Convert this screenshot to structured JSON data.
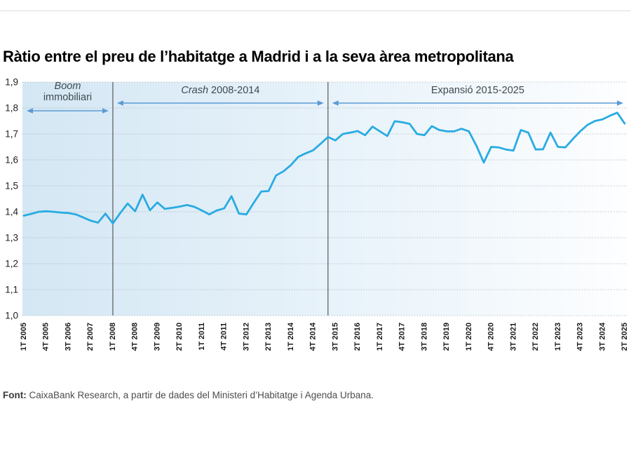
{
  "title": "Ràtio entre el preu de l’habitatge a Madrid i a la seva àrea metropolitana",
  "footer": {
    "label": "Font:",
    "text": " CaixaBank Research, a partir de dades del Ministeri d’Habitatge i Agenda Urbana."
  },
  "colors": {
    "line": "#29ABE2",
    "arrow": "#5B9BD5",
    "divider": "#6A6E70",
    "grid": "#A8B4BD",
    "bg_left": "#D4E7F4",
    "bg_mid": "#E9F3FA",
    "bg_right": "#FDFEFF",
    "annotation_text": "#3E4A51",
    "x_tick_text": "#1a1a1a",
    "y_tick_text": "#222222"
  },
  "chart_data": {
    "type": "line",
    "title": "Ràtio entre el preu de l’habitatge a Madrid i a la seva àrea metropolitana",
    "xlabel": "",
    "ylabel": "",
    "ylim": [
      1.0,
      1.9
    ],
    "grid": "horizontal-dotted",
    "legend_position": "none",
    "x": [
      "1T 2005",
      "2T 2005",
      "3T 2005",
      "4T 2005",
      "1T 2006",
      "2T 2006",
      "3T 2006",
      "4T 2006",
      "1T 2007",
      "2T 2007",
      "3T 2007",
      "4T 2007",
      "1T 2008",
      "2T 2008",
      "3T 2008",
      "4T 2008",
      "1T 2009",
      "2T 2009",
      "3T 2009",
      "4T 2009",
      "1T 2010",
      "2T 2010",
      "3T 2010",
      "4T 2010",
      "1T 2011",
      "2T 2011",
      "3T 2011",
      "4T 2011",
      "1T 2012",
      "2T 2012",
      "3T 2012",
      "4T 2012",
      "1T 2013",
      "2T 2013",
      "3T 2013",
      "4T 2013",
      "1T 2014",
      "2T 2014",
      "3T 2014",
      "4T 2014",
      "1T 2015",
      "2T 2015",
      "3T 2015",
      "4T 2015",
      "1T 2016",
      "2T 2016",
      "3T 2016",
      "4T 2016",
      "1T 2017",
      "2T 2017",
      "3T 2017",
      "4T 2017",
      "1T 2018",
      "2T 2018",
      "3T 2018",
      "4T 2018",
      "1T 2019",
      "2T 2019",
      "3T 2019",
      "4T 2019",
      "1T 2020",
      "2T 2020",
      "3T 2020",
      "4T 2020",
      "1T 2021",
      "2T 2021",
      "3T 2021",
      "4T 2021",
      "1T 2022",
      "2T 2022",
      "3T 2022",
      "4T 2022",
      "1T 2023",
      "2T 2023",
      "3T 2023",
      "4T 2023",
      "1T 2024",
      "2T 2024",
      "3T 2024",
      "4T 2024",
      "1T 2025",
      "2T 2025"
    ],
    "values": [
      1.385,
      1.392,
      1.4,
      1.402,
      1.4,
      1.397,
      1.395,
      1.39,
      1.378,
      1.366,
      1.358,
      1.393,
      1.355,
      1.395,
      1.432,
      1.402,
      1.466,
      1.406,
      1.436,
      1.411,
      1.415,
      1.42,
      1.426,
      1.419,
      1.405,
      1.39,
      1.405,
      1.413,
      1.46,
      1.393,
      1.39,
      1.435,
      1.478,
      1.48,
      1.54,
      1.556,
      1.58,
      1.612,
      1.625,
      1.637,
      1.662,
      1.688,
      1.675,
      1.7,
      1.705,
      1.711,
      1.695,
      1.728,
      1.71,
      1.692,
      1.749,
      1.745,
      1.739,
      1.7,
      1.695,
      1.73,
      1.715,
      1.71,
      1.71,
      1.72,
      1.71,
      1.655,
      1.59,
      1.65,
      1.648,
      1.64,
      1.636,
      1.715,
      1.705,
      1.64,
      1.641,
      1.705,
      1.65,
      1.648,
      1.68,
      1.71,
      1.735,
      1.75,
      1.756,
      1.77,
      1.782,
      1.74
    ],
    "x_tick_labels": [
      "1T 2005",
      "4T 2005",
      "3T 2006",
      "2T 2007",
      "1T 2008",
      "4T 2008",
      "3T 2009",
      "2T 2010",
      "1T 2011",
      "4T 2011",
      "3T 2012",
      "2T 2013",
      "1T 2014",
      "4T 2014",
      "3T 2015",
      "2T 2016",
      "1T 2017",
      "4T 2017",
      "3T 2018",
      "2T 2019",
      "1T 2020",
      "4T 2020",
      "3T 2021",
      "2T 2022",
      "1T 2023",
      "4T 2023",
      "3T 2024",
      "2T 2025"
    ],
    "y_tick_labels": [
      "1,9",
      "1,8",
      "1,7",
      "1,6",
      "1,5",
      "1,4",
      "1,3",
      "1,2",
      "1,1",
      "1,0"
    ],
    "dividers": [
      "1T 2008",
      "2T 2015"
    ],
    "annotations": [
      {
        "parts": [
          {
            "t": "Boom",
            "italic": true
          },
          {
            "t": "immobiliari",
            "italic": false
          }
        ],
        "two_line": true,
        "from": "1T 2005",
        "to": "1T 2008"
      },
      {
        "parts": [
          {
            "t": "Crash",
            "italic": true
          },
          {
            "t": " 2008-2014",
            "italic": false
          }
        ],
        "two_line": false,
        "from": "1T 2008",
        "to": "2T 2015"
      },
      {
        "parts": [
          {
            "t": "Expansió 2015-2025",
            "italic": false
          }
        ],
        "two_line": false,
        "from": "2T 2015",
        "to": "2T 2025"
      }
    ]
  }
}
